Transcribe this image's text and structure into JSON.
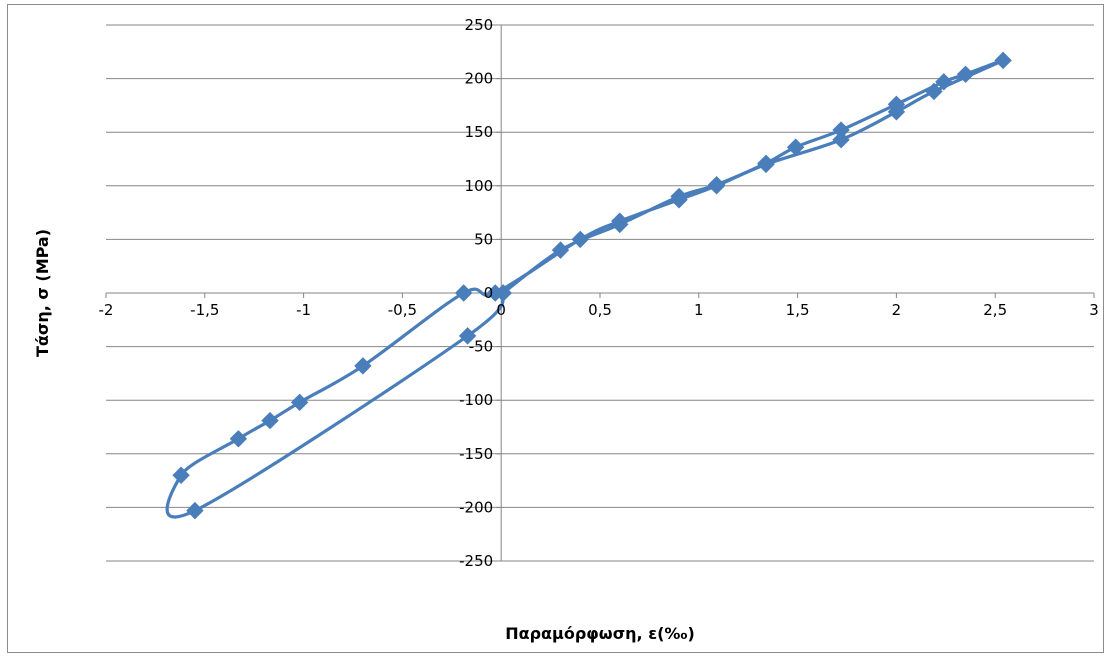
{
  "chart_data": {
    "type": "scatter",
    "xlabel": "Παραμόρφωση, ε(‰)",
    "ylabel": "Τάση, σ (MPa)",
    "xlim": [
      -2,
      3
    ],
    "ylim": [
      -250,
      250
    ],
    "x_ticks": [
      -2,
      -1.5,
      -1,
      -0.5,
      0,
      0.5,
      1,
      1.5,
      2,
      2.5,
      3
    ],
    "x_tick_labels": [
      "-2",
      "-1,5",
      "-1",
      "-0,5",
      "0",
      "0,5",
      "1",
      "1,5",
      "2",
      "2,5",
      "3"
    ],
    "y_ticks": [
      250,
      200,
      150,
      100,
      50,
      0,
      -50,
      -100,
      -150,
      -200,
      -250
    ],
    "y_tick_labels": [
      "250",
      "200",
      "150",
      "100",
      "50",
      "0",
      "-50",
      "-100",
      "-150",
      "-200",
      "-250"
    ],
    "grid": "horizontal",
    "legend": "none",
    "line_style": "smoothed line with diamond markers",
    "series": [
      {
        "color": "#4a7ebb",
        "points": [
          [
            0.01,
            0
          ],
          [
            0.3,
            40
          ],
          [
            0.6,
            64
          ],
          [
            0.9,
            90
          ],
          [
            1.09,
            101
          ],
          [
            1.34,
            121
          ],
          [
            1.49,
            136
          ],
          [
            1.72,
            152
          ],
          [
            2.0,
            176
          ],
          [
            2.24,
            197
          ],
          [
            2.35,
            204
          ],
          [
            2.54,
            217
          ],
          [
            2.19,
            188
          ],
          [
            2.0,
            169
          ],
          [
            1.72,
            143
          ],
          [
            1.34,
            120
          ],
          [
            1.09,
            100
          ],
          [
            0.9,
            87
          ],
          [
            0.6,
            67
          ],
          [
            0.4,
            50
          ],
          [
            -0.03,
            0
          ],
          [
            -0.19,
            0
          ],
          [
            -0.7,
            -68
          ],
          [
            -1.02,
            -102
          ],
          [
            -1.17,
            -119
          ],
          [
            -1.33,
            -136
          ],
          [
            -1.62,
            -170
          ],
          [
            -1.55,
            -203
          ],
          [
            -0.17,
            -40
          ],
          [
            0.01,
            0
          ]
        ]
      }
    ]
  }
}
